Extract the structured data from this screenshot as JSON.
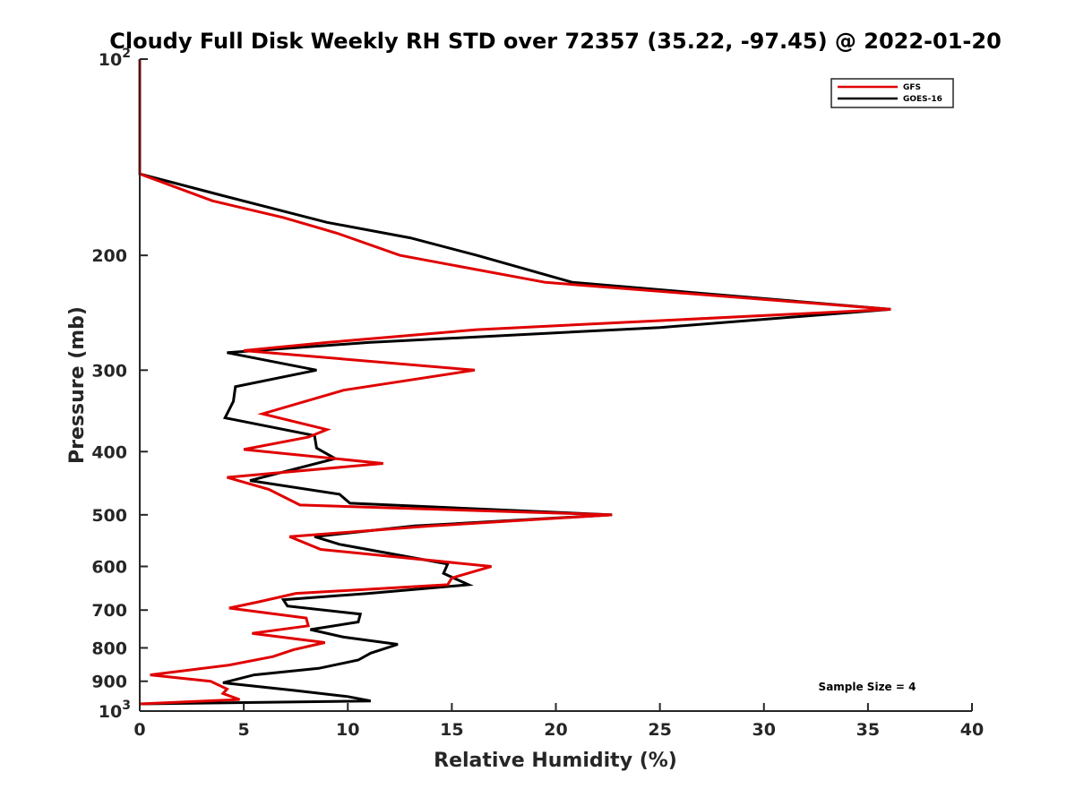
{
  "chart_data": {
    "type": "line",
    "orientation": "vertical-profile",
    "title": "Cloudy Full Disk Weekly RH STD over 72357 (35.22, -97.45) @ 2022-01-20",
    "xlabel": "Relative Humidity (%)",
    "ylabel": "Pressure (mb)",
    "xlim": [
      0,
      40
    ],
    "ylim": [
      100,
      1000
    ],
    "y_scale": "log",
    "y_reversed": true,
    "grid": false,
    "legend_position": "top-right",
    "x_ticks": [
      {
        "value": 0,
        "label": "0"
      },
      {
        "value": 5,
        "label": "5"
      },
      {
        "value": 10,
        "label": "10"
      },
      {
        "value": 15,
        "label": "15"
      },
      {
        "value": 20,
        "label": "20"
      },
      {
        "value": 25,
        "label": "25"
      },
      {
        "value": 30,
        "label": "30"
      },
      {
        "value": 35,
        "label": "35"
      },
      {
        "value": 40,
        "label": "40"
      }
    ],
    "y_ticks": [
      {
        "value": 100,
        "base": "10",
        "exp": "2"
      },
      {
        "value": 200,
        "base": "200",
        "exp": ""
      },
      {
        "value": 300,
        "base": "300",
        "exp": ""
      },
      {
        "value": 400,
        "base": "400",
        "exp": ""
      },
      {
        "value": 500,
        "base": "500",
        "exp": ""
      },
      {
        "value": 600,
        "base": "600",
        "exp": ""
      },
      {
        "value": 700,
        "base": "700",
        "exp": ""
      },
      {
        "value": 800,
        "base": "800",
        "exp": ""
      },
      {
        "value": 900,
        "base": "900",
        "exp": ""
      },
      {
        "value": 1000,
        "base": "10",
        "exp": "3"
      }
    ],
    "series": [
      {
        "name": "GFS",
        "color": "#e00000",
        "points": [
          [
            0,
            100
          ],
          [
            0,
            150
          ],
          [
            3.5,
            165
          ],
          [
            6.9,
            175
          ],
          [
            9.5,
            185
          ],
          [
            12.5,
            200
          ],
          [
            19.5,
            220
          ],
          [
            36.1,
            242
          ],
          [
            16.2,
            260
          ],
          [
            9.0,
            272
          ],
          [
            5.0,
            280
          ],
          [
            16.1,
            300
          ],
          [
            9.8,
            322
          ],
          [
            5.9,
            350
          ],
          [
            9.0,
            370
          ],
          [
            8.1,
            380
          ],
          [
            5.0,
            397
          ],
          [
            11.7,
            417
          ],
          [
            4.2,
            438
          ],
          [
            6.2,
            457
          ],
          [
            7.7,
            483
          ],
          [
            22.7,
            500
          ],
          [
            14.0,
            520
          ],
          [
            7.2,
            540
          ],
          [
            8.7,
            565
          ],
          [
            16.9,
            600
          ],
          [
            15.0,
            625
          ],
          [
            14.8,
            640
          ],
          [
            7.5,
            660
          ],
          [
            5.7,
            680
          ],
          [
            4.3,
            695
          ],
          [
            8.0,
            720
          ],
          [
            8.1,
            740
          ],
          [
            5.4,
            760
          ],
          [
            8.9,
            785
          ],
          [
            7.4,
            805
          ],
          [
            6.4,
            825
          ],
          [
            4.3,
            850
          ],
          [
            0.5,
            880
          ],
          [
            3.4,
            900
          ],
          [
            4.2,
            925
          ],
          [
            4.0,
            940
          ],
          [
            4.8,
            960
          ],
          [
            0,
            975
          ]
        ]
      },
      {
        "name": "GOES-16",
        "color": "#000000",
        "points": [
          [
            0,
            100
          ],
          [
            0,
            150
          ],
          [
            4.0,
            162
          ],
          [
            9.0,
            178
          ],
          [
            13.0,
            188
          ],
          [
            16.2,
            200
          ],
          [
            20.8,
            220
          ],
          [
            36.1,
            242
          ],
          [
            25.0,
            258
          ],
          [
            11.0,
            272
          ],
          [
            4.2,
            282
          ],
          [
            8.5,
            300
          ],
          [
            4.6,
            318
          ],
          [
            4.5,
            335
          ],
          [
            4.1,
            355
          ],
          [
            8.4,
            378
          ],
          [
            8.5,
            395
          ],
          [
            9.4,
            410
          ],
          [
            5.3,
            443
          ],
          [
            9.6,
            465
          ],
          [
            10.1,
            480
          ],
          [
            22.7,
            500
          ],
          [
            13.2,
            520
          ],
          [
            8.4,
            540
          ],
          [
            9.6,
            555
          ],
          [
            14.8,
            595
          ],
          [
            14.6,
            615
          ],
          [
            15.8,
            640
          ],
          [
            11.0,
            660
          ],
          [
            6.9,
            675
          ],
          [
            7.1,
            690
          ],
          [
            10.6,
            710
          ],
          [
            10.5,
            730
          ],
          [
            8.2,
            750
          ],
          [
            9.8,
            770
          ],
          [
            12.4,
            790
          ],
          [
            11.1,
            815
          ],
          [
            10.5,
            835
          ],
          [
            8.6,
            860
          ],
          [
            5.5,
            880
          ],
          [
            4.0,
            905
          ],
          [
            7.5,
            930
          ],
          [
            10.0,
            950
          ],
          [
            11.1,
            965
          ],
          [
            0,
            975
          ]
        ]
      }
    ],
    "annotations": [
      {
        "text": "Sample Size = 4"
      }
    ]
  }
}
